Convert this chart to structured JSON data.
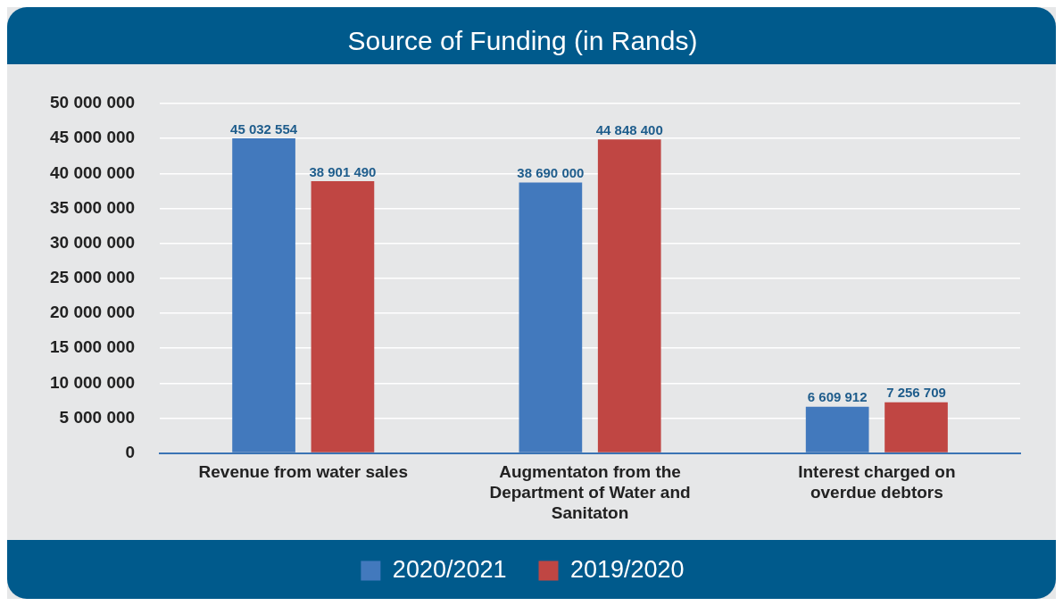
{
  "chart_data": {
    "type": "bar",
    "title": "Source of Funding (in Rands)",
    "categories": [
      "Revenue from water sales",
      "Augmentaton from the Department of Water and Sanitaton",
      "Interest charged on overdue debtors"
    ],
    "series": [
      {
        "name": "2020/2021",
        "color": "#4279bd",
        "values": [
          45032554,
          38690000,
          6609912
        ],
        "value_labels": [
          "45 032 554",
          "38 690 000",
          "6 609 912"
        ]
      },
      {
        "name": "2019/2020",
        "color": "#c04643",
        "values": [
          38901490,
          44848400,
          7256709
        ],
        "value_labels": [
          "38 901 490",
          "44 848 400",
          "7 256 709"
        ]
      }
    ],
    "ylim": [
      0,
      50000000
    ],
    "yticks": [
      {
        "value": 0,
        "label": "0"
      },
      {
        "value": 5000000,
        "label": "5 000 000"
      },
      {
        "value": 10000000,
        "label": "10 000 000"
      },
      {
        "value": 15000000,
        "label": "15 000 000"
      },
      {
        "value": 20000000,
        "label": "20 000 000"
      },
      {
        "value": 25000000,
        "label": "25 000 000"
      },
      {
        "value": 30000000,
        "label": "30 000 000"
      },
      {
        "value": 35000000,
        "label": "35 000 000"
      },
      {
        "value": 40000000,
        "label": "40 000 000"
      },
      {
        "value": 45000000,
        "label": "45 000 000"
      },
      {
        "value": 50000000,
        "label": "50 000 000"
      }
    ],
    "grid": "y",
    "legend": "bottom"
  }
}
